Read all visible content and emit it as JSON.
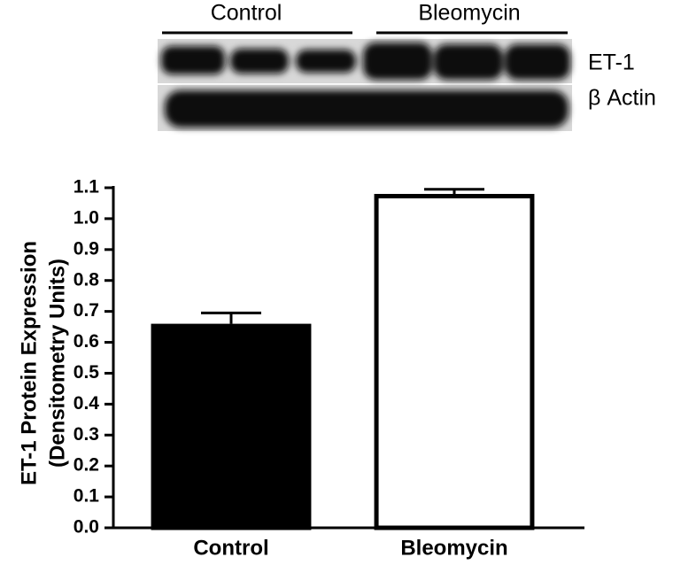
{
  "blot": {
    "groups": [
      "Control",
      "Bleomycin"
    ],
    "bands": [
      "ET-1",
      "β Actin"
    ]
  },
  "chart_data": {
    "type": "bar",
    "ylabel": [
      "ET-1 Protein Expression",
      "(Densitometry Units)"
    ],
    "categories": [
      "Control",
      "Bleomycin"
    ],
    "values": [
      0.66,
      1.08
    ],
    "errors": [
      0.035,
      0.015
    ],
    "colors": [
      "#000000",
      "#ffffff"
    ],
    "ylim": [
      0,
      1.1
    ],
    "yticks": [
      {
        "value": 0,
        "label": "0.0"
      },
      0.1,
      0.2,
      0.3,
      0.4,
      0.5,
      0.6,
      0.7,
      0.8,
      0.9,
      {
        "value": 1,
        "label": "1.0"
      },
      1.1
    ]
  }
}
